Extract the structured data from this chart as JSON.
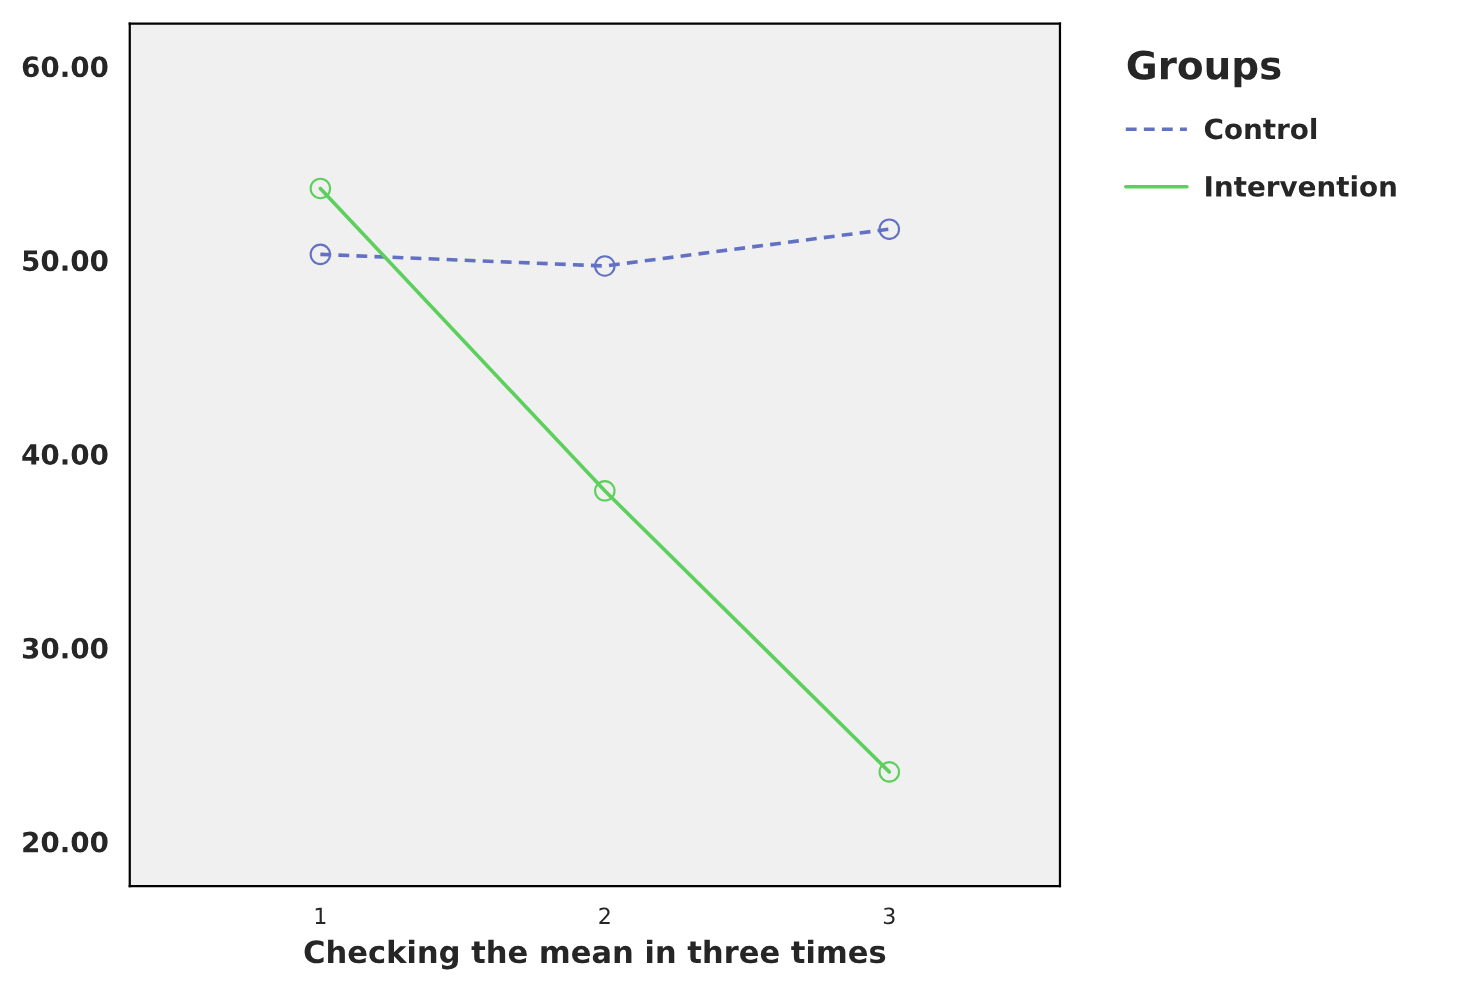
{
  "chart_data": {
    "type": "line",
    "xlabel": "Checking the mean in three times",
    "legend_title": "Groups",
    "x": [
      1,
      2,
      3
    ],
    "series": [
      {
        "name": "Control",
        "color": "#6271c4",
        "values": [
          50.3,
          49.7,
          51.6
        ],
        "line_style": "dashed"
      },
      {
        "name": "Intervention",
        "color": "#5ccf5c",
        "values": [
          53.7,
          38.1,
          23.6
        ],
        "line_style": "solid"
      }
    ],
    "xlim": [
      0.33,
      3.6
    ],
    "xticks": [
      1,
      2,
      3
    ],
    "ylim": [
      17.7,
      62.2
    ],
    "yticks": [
      {
        "value": 20,
        "label": "20.00"
      },
      {
        "value": 30,
        "label": "30.00"
      },
      {
        "value": 40,
        "label": "40.00"
      },
      {
        "value": 50,
        "label": "50.00"
      },
      {
        "value": 60,
        "label": "60.00"
      }
    ],
    "marker": "circle",
    "grid": false,
    "legend": "top right"
  }
}
